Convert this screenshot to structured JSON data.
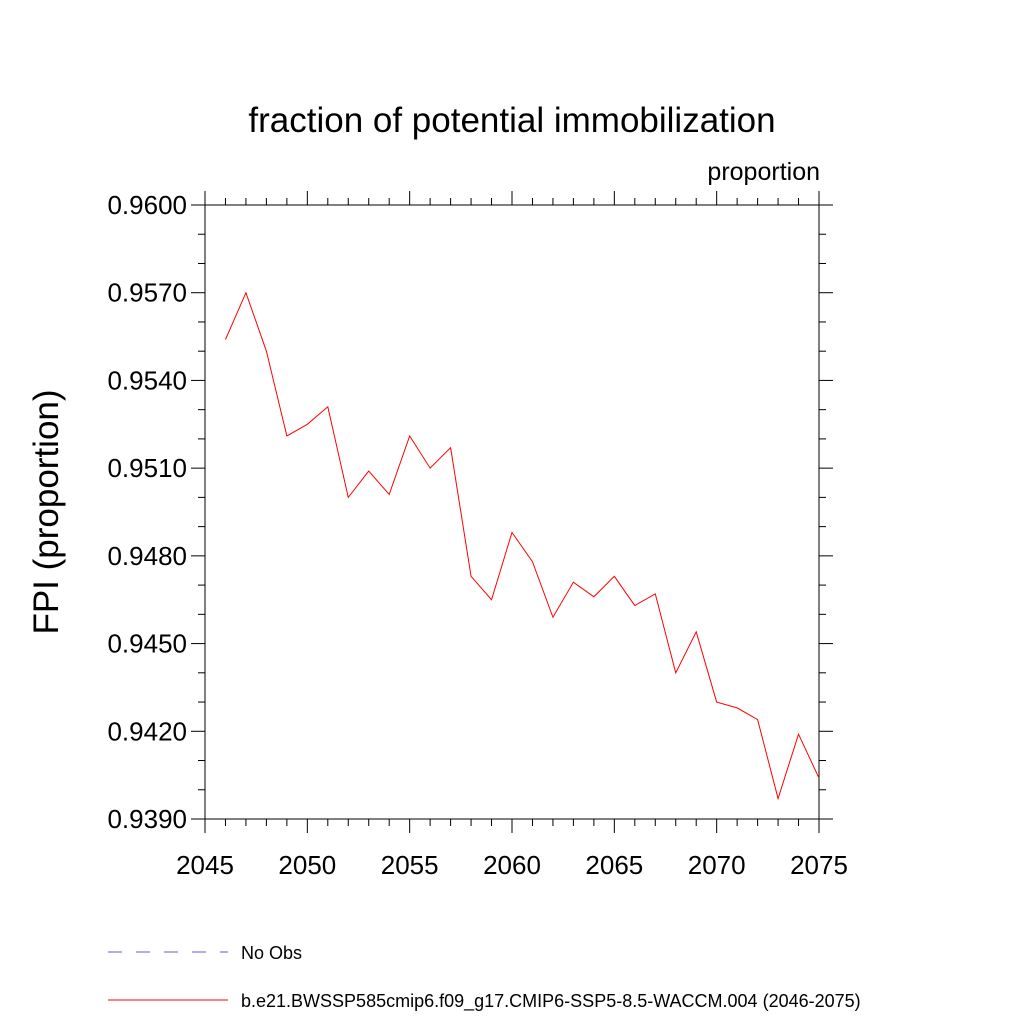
{
  "chart_data": {
    "type": "line",
    "title": "fraction of potential immobilization",
    "units_label": "proportion",
    "ylabel": "FPI  (proportion)",
    "xlabel": "",
    "xlim": [
      2045,
      2075
    ],
    "ylim": [
      0.939,
      0.96
    ],
    "xticks": [
      "2045",
      "2050",
      "2055",
      "2060",
      "2065",
      "2070",
      "2075"
    ],
    "yticks": [
      "0.9390",
      "0.9420",
      "0.9450",
      "0.9480",
      "0.9510",
      "0.9540",
      "0.9570",
      "0.9600"
    ],
    "series": [
      {
        "name": "b.e21.BWSSP585cmip6.f09_g17.CMIP6-SSP5-8.5-WACCM.004 (2046-2075)",
        "color": "#ff0000",
        "style": "solid",
        "x": [
          2046,
          2047,
          2048,
          2049,
          2050,
          2051,
          2052,
          2053,
          2054,
          2055,
          2056,
          2057,
          2058,
          2059,
          2060,
          2061,
          2062,
          2063,
          2064,
          2065,
          2066,
          2067,
          2068,
          2069,
          2070,
          2071,
          2072,
          2073,
          2074,
          2075
        ],
        "values": [
          0.9554,
          0.957,
          0.955,
          0.9521,
          0.9525,
          0.9531,
          0.95,
          0.9509,
          0.9501,
          0.9521,
          0.951,
          0.9517,
          0.9473,
          0.9465,
          0.9488,
          0.9478,
          0.9459,
          0.9471,
          0.9466,
          0.9473,
          0.9463,
          0.9467,
          0.944,
          0.9454,
          0.943,
          0.9428,
          0.9424,
          0.9397,
          0.9419,
          0.9404
        ]
      }
    ],
    "legend": [
      {
        "label": "No Obs",
        "color": "#6a5acd",
        "style": "dashed"
      },
      {
        "label": "b.e21.BWSSP585cmip6.f09_g17.CMIP6-SSP5-8.5-WACCM.004 (2046-2075)",
        "color": "#ff0000",
        "style": "solid"
      }
    ],
    "legend_position": "bottom",
    "grid": false
  }
}
